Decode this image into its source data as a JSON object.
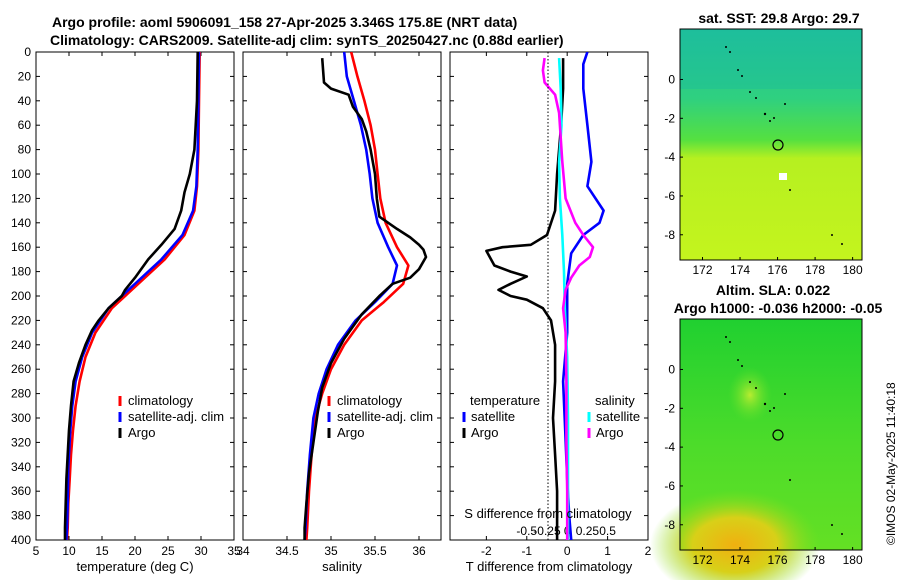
{
  "title": {
    "line1": "Argo profile: aoml 5906091_158 27-Apr-2025 3.346S 175.8E (NRT data)",
    "line2": "Climatology: CARS2009. Satellite-adj clim: synTS_20250427.nc (0.88d earlier)"
  },
  "colors": {
    "climatology": "#ff0000",
    "satellite": "#0000ff",
    "argo": "#000000",
    "sat_salinity": "#00ffff",
    "argo_salinity": "#ff00ff"
  },
  "depth_axis": {
    "ticks": [
      "0",
      "20",
      "40",
      "60",
      "80",
      "100",
      "120",
      "140",
      "160",
      "180",
      "200",
      "220",
      "240",
      "260",
      "280",
      "300",
      "320",
      "340",
      "360",
      "380",
      "400"
    ]
  },
  "chart_data": [
    {
      "type": "line",
      "name": "temperature",
      "xlabel": "temperature (deg C)",
      "xlim": [
        5,
        35
      ],
      "ylim": [
        0,
        400
      ],
      "xticks": [
        "5",
        "10",
        "15",
        "20",
        "25",
        "30",
        "35"
      ],
      "legend": [
        "climatology",
        "satellite-adj. clim",
        "Argo"
      ],
      "series": [
        {
          "name": "climatology",
          "color": "#ff0000",
          "points": [
            [
              29.8,
              0
            ],
            [
              29.7,
              40
            ],
            [
              29.6,
              80
            ],
            [
              29.4,
              110
            ],
            [
              29.0,
              130
            ],
            [
              27.5,
              150
            ],
            [
              24.5,
              170
            ],
            [
              20.5,
              190
            ],
            [
              16.5,
              210
            ],
            [
              14.0,
              230
            ],
            [
              12.5,
              250
            ],
            [
              11.6,
              270
            ],
            [
              11.0,
              290
            ],
            [
              10.6,
              310
            ],
            [
              10.3,
              330
            ],
            [
              10.1,
              350
            ],
            [
              9.9,
              370
            ],
            [
              9.8,
              390
            ],
            [
              9.7,
              400
            ]
          ]
        },
        {
          "name": "satellite-adj. clim",
          "color": "#0000ff",
          "points": [
            [
              29.7,
              0
            ],
            [
              29.6,
              40
            ],
            [
              29.5,
              80
            ],
            [
              29.3,
              110
            ],
            [
              28.8,
              130
            ],
            [
              27.2,
              150
            ],
            [
              24.0,
              170
            ],
            [
              20.0,
              190
            ],
            [
              16.0,
              210
            ],
            [
              13.5,
              230
            ],
            [
              12.0,
              250
            ],
            [
              11.0,
              270
            ],
            [
              10.5,
              290
            ],
            [
              10.2,
              310
            ],
            [
              9.9,
              340
            ],
            [
              9.8,
              370
            ],
            [
              9.7,
              390
            ],
            [
              9.6,
              400
            ]
          ]
        },
        {
          "name": "Argo",
          "color": "#000000",
          "points": [
            [
              29.5,
              0
            ],
            [
              29.4,
              40
            ],
            [
              29.0,
              80
            ],
            [
              28.3,
              100
            ],
            [
              27.5,
              115
            ],
            [
              27.0,
              130
            ],
            [
              26.0,
              145
            ],
            [
              24.0,
              158
            ],
            [
              22.0,
              170
            ],
            [
              20.0,
              185
            ],
            [
              18.5,
              195
            ],
            [
              18.0,
              200
            ],
            [
              16.0,
              210
            ],
            [
              14.5,
              220
            ],
            [
              13.5,
              228
            ],
            [
              12.5,
              240
            ],
            [
              11.5,
              255
            ],
            [
              10.7,
              270
            ],
            [
              10.3,
              290
            ],
            [
              10.0,
              310
            ],
            [
              9.8,
              330
            ],
            [
              9.6,
              350
            ],
            [
              9.5,
              370
            ],
            [
              9.4,
              390
            ],
            [
              9.4,
              400
            ]
          ]
        }
      ]
    },
    {
      "type": "line",
      "name": "salinity",
      "xlabel": "salinity",
      "xlim": [
        34,
        36.25
      ],
      "ylim": [
        0,
        400
      ],
      "xticks": [
        "34",
        "34.5",
        "35",
        "35.5",
        "36"
      ],
      "legend": [
        "climatology",
        "satellite-adj. clim",
        "Argo"
      ],
      "series": [
        {
          "name": "climatology",
          "color": "#ff0000",
          "points": [
            [
              35.23,
              0
            ],
            [
              35.3,
              20
            ],
            [
              35.38,
              40
            ],
            [
              35.45,
              60
            ],
            [
              35.5,
              80
            ],
            [
              35.53,
              100
            ],
            [
              35.56,
              120
            ],
            [
              35.62,
              140
            ],
            [
              35.75,
              160
            ],
            [
              35.88,
              175
            ],
            [
              35.82,
              190
            ],
            [
              35.6,
              205
            ],
            [
              35.35,
              220
            ],
            [
              35.15,
              240
            ],
            [
              35.0,
              260
            ],
            [
              34.9,
              280
            ],
            [
              34.82,
              300
            ],
            [
              34.78,
              330
            ],
            [
              34.75,
              360
            ],
            [
              34.73,
              390
            ],
            [
              34.72,
              400
            ]
          ]
        },
        {
          "name": "satellite-adj. clim",
          "color": "#0000ff",
          "points": [
            [
              35.15,
              0
            ],
            [
              35.18,
              20
            ],
            [
              35.26,
              40
            ],
            [
              35.34,
              60
            ],
            [
              35.4,
              80
            ],
            [
              35.44,
              100
            ],
            [
              35.47,
              120
            ],
            [
              35.53,
              140
            ],
            [
              35.65,
              160
            ],
            [
              35.75,
              175
            ],
            [
              35.7,
              190
            ],
            [
              35.5,
              205
            ],
            [
              35.28,
              220
            ],
            [
              35.08,
              240
            ],
            [
              34.95,
              260
            ],
            [
              34.86,
              280
            ],
            [
              34.8,
              300
            ],
            [
              34.76,
              330
            ],
            [
              34.73,
              360
            ],
            [
              34.71,
              390
            ],
            [
              34.7,
              400
            ]
          ]
        },
        {
          "name": "Argo",
          "color": "#000000",
          "points": [
            [
              34.9,
              5
            ],
            [
              34.92,
              25
            ],
            [
              35.0,
              30
            ],
            [
              35.2,
              35
            ],
            [
              35.25,
              45
            ],
            [
              35.35,
              55
            ],
            [
              35.4,
              65
            ],
            [
              35.45,
              80
            ],
            [
              35.5,
              100
            ],
            [
              35.52,
              120
            ],
            [
              35.55,
              135
            ],
            [
              35.75,
              145
            ],
            [
              35.9,
              152
            ],
            [
              36.0,
              158
            ],
            [
              36.05,
              162
            ],
            [
              36.08,
              168
            ],
            [
              36.0,
              178
            ],
            [
              35.9,
              185
            ],
            [
              35.7,
              190
            ],
            [
              35.55,
              200
            ],
            [
              35.35,
              215
            ],
            [
              35.15,
              235
            ],
            [
              35.0,
              255
            ],
            [
              34.9,
              275
            ],
            [
              34.85,
              295
            ],
            [
              34.8,
              320
            ],
            [
              34.75,
              345
            ],
            [
              34.72,
              370
            ],
            [
              34.7,
              390
            ],
            [
              34.7,
              400
            ]
          ]
        }
      ]
    },
    {
      "type": "line",
      "name": "differences",
      "xlabel": "T difference from climatology",
      "xlabel_top": "S difference from climatology",
      "xlim": [
        -2.9,
        2.0
      ],
      "ylim": [
        0,
        400
      ],
      "xticks": [
        "-2",
        "-1",
        "0",
        "1",
        "2"
      ],
      "xticks_top": [
        "-0.5",
        "-0.25",
        "0",
        "0.25",
        "0.5"
      ],
      "legend_temperature": {
        "title": "temperature",
        "items": [
          "satellite",
          "Argo"
        ]
      },
      "legend_salinity": {
        "title": "salinity",
        "items": [
          "satellite",
          "Argo"
        ]
      },
      "series": [
        {
          "name": "temperature satellite",
          "color": "#0000ff",
          "points": [
            [
              0.5,
              0
            ],
            [
              0.4,
              10
            ],
            [
              0.4,
              30
            ],
            [
              0.5,
              60
            ],
            [
              0.6,
              90
            ],
            [
              0.5,
              110
            ],
            [
              0.9,
              130
            ],
            [
              0.8,
              140
            ],
            [
              0.4,
              150
            ],
            [
              0.1,
              165
            ],
            [
              0.0,
              190
            ],
            [
              0.0,
              230
            ],
            [
              -0.1,
              270
            ],
            [
              -0.05,
              310
            ],
            [
              0.0,
              350
            ],
            [
              0.05,
              380
            ],
            [
              0.1,
              400
            ]
          ]
        },
        {
          "name": "temperature Argo",
          "color": "#000000",
          "points": [
            [
              -0.1,
              5
            ],
            [
              -0.1,
              30
            ],
            [
              -0.15,
              60
            ],
            [
              -0.25,
              100
            ],
            [
              -0.3,
              130
            ],
            [
              -0.5,
              150
            ],
            [
              -0.9,
              158
            ],
            [
              -1.6,
              160
            ],
            [
              -2.0,
              163
            ],
            [
              -1.8,
              175
            ],
            [
              -1.4,
              180
            ],
            [
              -1.0,
              184
            ],
            [
              -1.4,
              190
            ],
            [
              -1.7,
              195
            ],
            [
              -1.4,
              200
            ],
            [
              -1.0,
              203
            ],
            [
              -0.6,
              210
            ],
            [
              -0.4,
              220
            ],
            [
              -0.3,
              240
            ],
            [
              -0.3,
              270
            ],
            [
              -0.35,
              300
            ],
            [
              -0.3,
              330
            ],
            [
              -0.25,
              360
            ],
            [
              -0.25,
              390
            ],
            [
              -0.25,
              400
            ]
          ]
        },
        {
          "name": "salinity satellite",
          "color": "#00ffff",
          "points": [
            [
              -0.1,
              5
            ],
            [
              -0.08,
              30
            ],
            [
              -0.07,
              60
            ],
            [
              -0.1,
              90
            ],
            [
              -0.09,
              120
            ],
            [
              -0.06,
              150
            ],
            [
              -0.04,
              180
            ],
            [
              -0.03,
              210
            ],
            [
              0.0,
              250
            ],
            [
              0.01,
              300
            ],
            [
              0.01,
              350
            ],
            [
              0.01,
              400
            ]
          ]
        },
        {
          "name": "salinity Argo",
          "color": "#ff00ff",
          "points": [
            [
              -0.28,
              5
            ],
            [
              -0.3,
              15
            ],
            [
              -0.28,
              25
            ],
            [
              -0.15,
              35
            ],
            [
              -0.1,
              50
            ],
            [
              -0.08,
              70
            ],
            [
              -0.06,
              90
            ],
            [
              -0.02,
              120
            ],
            [
              0.1,
              140
            ],
            [
              0.2,
              150
            ],
            [
              0.32,
              160
            ],
            [
              0.28,
              168
            ],
            [
              0.15,
              175
            ],
            [
              0.05,
              185
            ],
            [
              -0.02,
              195
            ],
            [
              -0.05,
              210
            ],
            [
              -0.02,
              230
            ],
            [
              -0.01,
              270
            ],
            [
              -0.01,
              320
            ],
            [
              0.0,
              360
            ],
            [
              0.0,
              400
            ]
          ]
        }
      ]
    }
  ],
  "map_sst": {
    "title": "sat. SST: 29.8 Argo: 29.7",
    "xticks": [
      "172",
      "174",
      "176",
      "178",
      "180"
    ],
    "yticks": [
      "0",
      "-2",
      "-4",
      "-6",
      "-8"
    ]
  },
  "map_sla": {
    "title1": "Altim. SLA: 0.022",
    "title2": "Argo h1000: -0.036 h2000: -0.05",
    "xticks": [
      "172",
      "174",
      "176",
      "178",
      "180"
    ],
    "yticks": [
      "0",
      "-2",
      "-4",
      "-6",
      "-8"
    ]
  },
  "credit": "©IMOS 02-May-2025 11:40:18"
}
